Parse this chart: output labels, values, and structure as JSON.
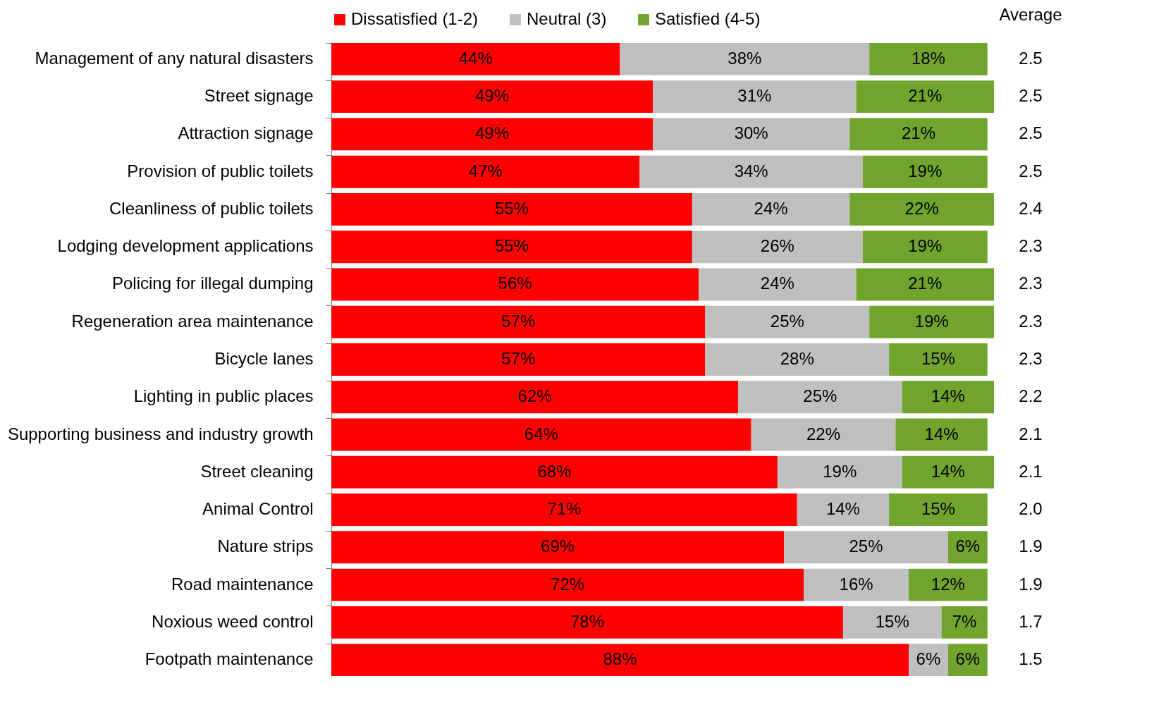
{
  "chart_data": {
    "type": "bar",
    "orientation": "horizontal",
    "stacked": true,
    "legend": "top",
    "grid": false,
    "categories": [
      "Management of any natural disasters",
      "Street signage",
      "Attraction signage",
      "Provision of public toilets",
      "Cleanliness of public toilets",
      "Lodging development applications",
      "Policing for illegal dumping",
      "Regeneration area maintenance",
      "Bicycle lanes",
      "Lighting in public places",
      "Supporting business and industry growth",
      "Street cleaning",
      "Animal Control",
      "Nature strips",
      "Road maintenance",
      "Noxious weed control",
      "Footpath maintenance"
    ],
    "series": [
      {
        "name": "Dissatisfied (1-2)",
        "color": "#ff0000",
        "values": [
          44,
          49,
          49,
          47,
          55,
          55,
          56,
          57,
          57,
          62,
          64,
          68,
          71,
          69,
          72,
          78,
          88
        ],
        "value_labels": [
          "44%",
          "49%",
          "49%",
          "47%",
          "55%",
          "55%",
          "56%",
          "57%",
          "57%",
          "62%",
          "64%",
          "68%",
          "71%",
          "69%",
          "72%",
          "78%",
          "88%"
        ]
      },
      {
        "name": "Neutral (3)",
        "color": "#bfbfbf",
        "values": [
          38,
          31,
          30,
          34,
          24,
          26,
          24,
          25,
          28,
          25,
          22,
          19,
          14,
          25,
          16,
          15,
          6
        ],
        "value_labels": [
          "38%",
          "31%",
          "30%",
          "34%",
          "24%",
          "26%",
          "24%",
          "25%",
          "28%",
          "25%",
          "22%",
          "19%",
          "14%",
          "25%",
          "16%",
          "15%",
          "6%"
        ]
      },
      {
        "name": "Satisfied (4-5)",
        "color": "#70a42c",
        "values": [
          18,
          21,
          21,
          19,
          22,
          19,
          21,
          19,
          15,
          14,
          14,
          14,
          15,
          6,
          12,
          7,
          6
        ],
        "value_labels": [
          "18%",
          "21%",
          "21%",
          "19%",
          "22%",
          "19%",
          "21%",
          "19%",
          "15%",
          "14%",
          "14%",
          "14%",
          "15%",
          "6%",
          "12%",
          "7%",
          "6%"
        ]
      }
    ],
    "annotations": [
      "Average",
      "2.5",
      "2.5",
      "2.5",
      "2.5",
      "2.4",
      "2.3",
      "2.3",
      "2.3",
      "2.3",
      "2.2",
      "2.1",
      "2.1",
      "2.0",
      "1.9",
      "1.9",
      "1.7",
      "1.5"
    ]
  }
}
